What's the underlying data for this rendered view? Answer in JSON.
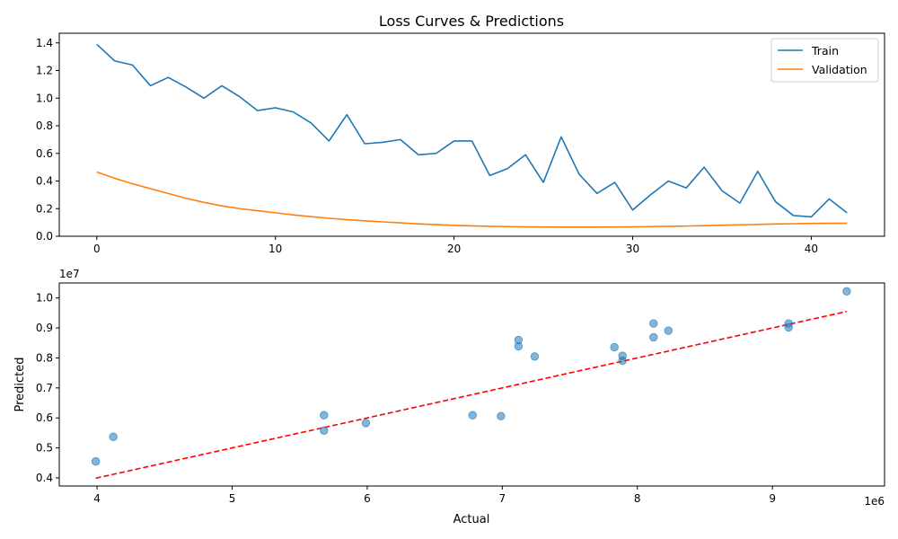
{
  "chart_data": [
    {
      "type": "line",
      "title": "Loss Curves & Predictions",
      "xlabel": "",
      "ylabel": "",
      "xlim": [
        -2.1,
        44.1
      ],
      "ylim": [
        0,
        1.47
      ],
      "xticks": [
        0,
        10,
        20,
        30,
        40
      ],
      "xtick_labels": [
        "0",
        "10",
        "20",
        "30",
        "40"
      ],
      "yticks": [
        0.0,
        0.2,
        0.4,
        0.6,
        0.8,
        1.0,
        1.2,
        1.4
      ],
      "ytick_labels": [
        "0.0",
        "0.2",
        "0.4",
        "0.6",
        "0.8",
        "1.0",
        "1.2",
        "1.4"
      ],
      "grid": false,
      "legend": "top-right",
      "x": [
        0,
        1,
        2,
        3,
        4,
        5,
        6,
        7,
        8,
        9,
        10,
        11,
        12,
        13,
        14,
        15,
        16,
        17,
        18,
        19,
        20,
        21,
        22,
        23,
        24,
        25,
        26,
        27,
        28,
        29,
        30,
        31,
        32,
        33,
        34,
        35,
        36,
        37,
        38,
        39,
        40,
        41,
        42
      ],
      "series": [
        {
          "name": "Train",
          "color": "#1f77b4",
          "values": [
            1.39,
            1.27,
            1.24,
            1.09,
            1.15,
            1.08,
            1.0,
            1.09,
            1.01,
            0.91,
            0.93,
            0.9,
            0.82,
            0.69,
            0.88,
            0.67,
            0.68,
            0.7,
            0.59,
            0.6,
            0.69,
            0.69,
            0.44,
            0.49,
            0.59,
            0.39,
            0.72,
            0.45,
            0.31,
            0.39,
            0.19,
            0.3,
            0.4,
            0.35,
            0.5,
            0.33,
            0.24,
            0.47,
            0.25,
            0.15,
            0.14,
            0.27,
            0.17
          ]
        },
        {
          "name": "Validation",
          "color": "#ff7f0e",
          "values": [
            0.465,
            0.42,
            0.38,
            0.345,
            0.31,
            0.275,
            0.245,
            0.22,
            0.2,
            0.185,
            0.17,
            0.155,
            0.142,
            0.13,
            0.12,
            0.112,
            0.104,
            0.097,
            0.09,
            0.084,
            0.079,
            0.075,
            0.072,
            0.07,
            0.068,
            0.067,
            0.066,
            0.066,
            0.066,
            0.067,
            0.068,
            0.07,
            0.072,
            0.074,
            0.077,
            0.08,
            0.083,
            0.086,
            0.089,
            0.091,
            0.093,
            0.094,
            0.095
          ]
        }
      ]
    },
    {
      "type": "scatter",
      "title": "",
      "xlabel": "Actual",
      "ylabel": "Predicted",
      "x_offset_label": "1e6",
      "y_offset_label": "1e7",
      "x_scale": 1000000,
      "y_scale": 10000000,
      "xlim": [
        3720000,
        9830000
      ],
      "ylim": [
        3730000,
        10500000
      ],
      "xticks": [
        4,
        5,
        6,
        7,
        8,
        9
      ],
      "xtick_labels": [
        "4",
        "5",
        "6",
        "7",
        "8",
        "9"
      ],
      "yticks": [
        0.4,
        0.5,
        0.6,
        0.7,
        0.8,
        0.9,
        1.0
      ],
      "ytick_labels": [
        "0.4",
        "0.5",
        "0.6",
        "0.7",
        "0.8",
        "0.9",
        "1.0"
      ],
      "grid": false,
      "point_color": "#1f77b4",
      "points": [
        {
          "x": 3990000,
          "y": 4550000
        },
        {
          "x": 4120000,
          "y": 5370000
        },
        {
          "x": 5680000,
          "y": 6090000
        },
        {
          "x": 5680000,
          "y": 5580000
        },
        {
          "x": 5990000,
          "y": 5830000
        },
        {
          "x": 6780000,
          "y": 6090000
        },
        {
          "x": 6990000,
          "y": 6060000
        },
        {
          "x": 7120000,
          "y": 8600000
        },
        {
          "x": 7120000,
          "y": 8390000
        },
        {
          "x": 7240000,
          "y": 8050000
        },
        {
          "x": 7830000,
          "y": 8360000
        },
        {
          "x": 7890000,
          "y": 8070000
        },
        {
          "x": 7890000,
          "y": 7910000
        },
        {
          "x": 8120000,
          "y": 9150000
        },
        {
          "x": 8120000,
          "y": 8690000
        },
        {
          "x": 8230000,
          "y": 8910000
        },
        {
          "x": 9120000,
          "y": 9150000
        },
        {
          "x": 9120000,
          "y": 9020000
        },
        {
          "x": 9550000,
          "y": 10220000
        }
      ],
      "reference_line": {
        "style": "dashed",
        "color": "#ff0000",
        "from": [
          3990000,
          3990000
        ],
        "to": [
          9550000,
          9550000
        ]
      }
    }
  ]
}
